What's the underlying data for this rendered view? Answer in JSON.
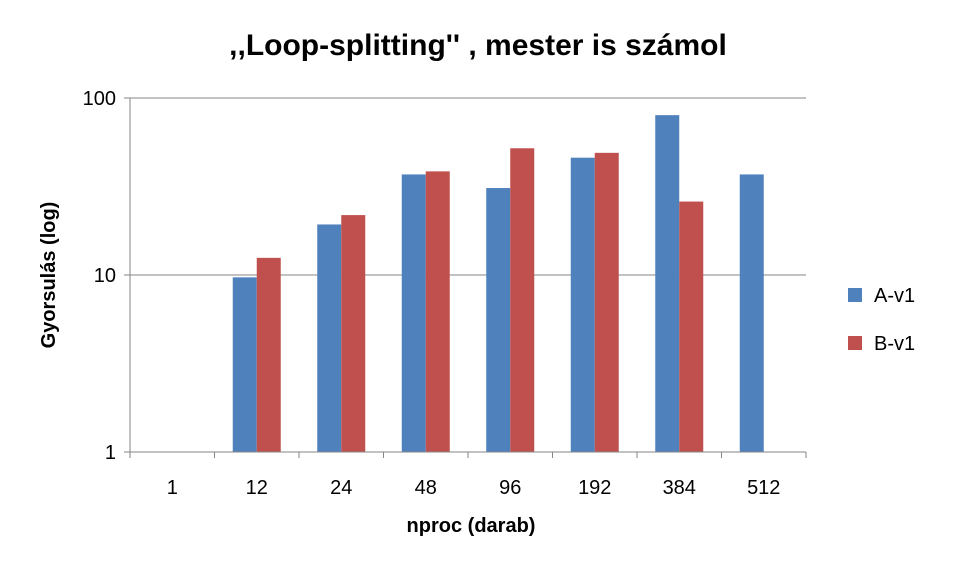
{
  "chart_data": {
    "type": "bar",
    "title": ",,Loop-splitting'' , mester is számol",
    "xlabel": "nproc (darab)",
    "ylabel": "Gyorsulás (log)",
    "yscale": "log",
    "ylim": [
      1,
      100
    ],
    "yticks": [
      "1",
      "10",
      "100"
    ],
    "categories": [
      "1",
      "12",
      "24",
      "48",
      "96",
      "192",
      "384",
      "512"
    ],
    "series": [
      {
        "name": "A-v1",
        "color": "#4F81BD",
        "values": [
          1,
          9.7,
          19.3,
          37,
          31,
          46,
          80,
          37
        ]
      },
      {
        "name": "B-v1",
        "color": "#C0504D",
        "values": [
          1,
          12.5,
          21.8,
          38.5,
          52,
          49,
          26,
          null
        ]
      }
    ],
    "grid": true,
    "legend_position": "right"
  }
}
